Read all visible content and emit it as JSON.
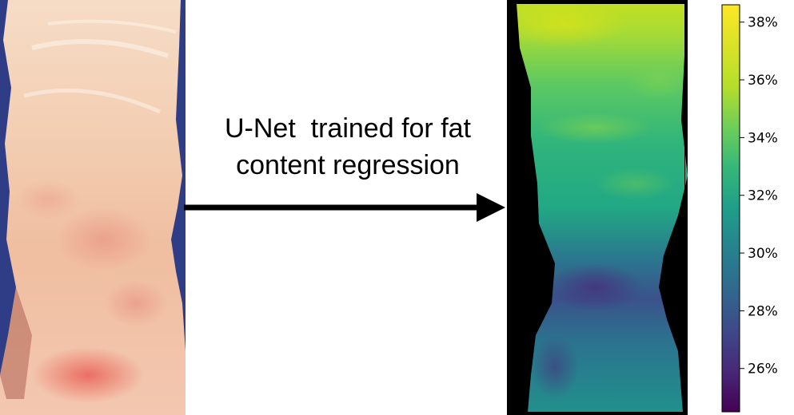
{
  "caption": {
    "line1": "U-Net  trained for fat",
    "line2": "content regression"
  },
  "colorbar": {
    "colormap": "viridis",
    "range": [
      24.5,
      38.6
    ],
    "unit": "%",
    "ticks": [
      {
        "value": 26,
        "label": "26%"
      },
      {
        "value": 28,
        "label": "28%"
      },
      {
        "value": 30,
        "label": "30%"
      },
      {
        "value": 32,
        "label": "32%"
      },
      {
        "value": 34,
        "label": "34%"
      },
      {
        "value": 36,
        "label": "36%"
      },
      {
        "value": 38,
        "label": "38%"
      }
    ]
  },
  "colors": {
    "arrow": "#000000",
    "meat_background": "#2f3d86",
    "meat_base": "#f1c7ac",
    "map_background": "#000000"
  }
}
